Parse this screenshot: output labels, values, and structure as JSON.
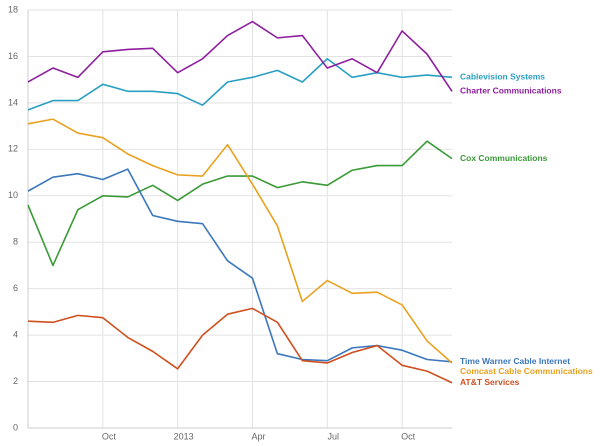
{
  "chart_data": {
    "type": "line",
    "categories": [
      null,
      null,
      null,
      "Oct",
      null,
      null,
      "2013",
      null,
      null,
      "Apr",
      null,
      null,
      "Jul",
      null,
      null,
      "Oct",
      null,
      null
    ],
    "ylim": [
      0,
      18
    ],
    "yticks": [
      0,
      2,
      4,
      6,
      8,
      10,
      12,
      14,
      16,
      18
    ],
    "grid": true,
    "series": [
      {
        "name": "Cablevision Systems",
        "color": "#2a9fc2",
        "values": [
          13.7,
          14.1,
          14.1,
          14.8,
          14.5,
          14.5,
          14.4,
          13.9,
          14.9,
          15.1,
          15.4,
          14.9,
          15.9,
          15.1,
          15.3,
          15.1,
          15.2,
          15.1
        ]
      },
      {
        "name": "Charter Communications",
        "color": "#8e1f9e",
        "values": [
          14.9,
          15.5,
          15.1,
          16.2,
          16.3,
          16.35,
          15.3,
          15.9,
          16.9,
          17.5,
          16.8,
          16.9,
          15.5,
          15.9,
          15.3,
          17.1,
          16.1,
          14.5
        ]
      },
      {
        "name": "Cox Communications",
        "color": "#3a9a36",
        "values": [
          9.6,
          7.0,
          9.4,
          10.0,
          9.95,
          10.45,
          9.8,
          10.5,
          10.85,
          10.85,
          10.35,
          10.6,
          10.45,
          11.1,
          11.3,
          11.3,
          12.35,
          11.6
        ]
      },
      {
        "name": "Time Warner Cable Internet",
        "color": "#3b77bd",
        "values": [
          10.2,
          10.8,
          10.95,
          10.7,
          11.15,
          9.15,
          8.9,
          8.8,
          7.2,
          6.45,
          3.2,
          2.95,
          2.9,
          3.45,
          3.55,
          3.35,
          2.95,
          2.85
        ]
      },
      {
        "name": "Comcast Cable Communications",
        "color": "#e9a11f",
        "values": [
          13.1,
          13.3,
          12.7,
          12.5,
          11.8,
          11.3,
          10.9,
          10.85,
          12.2,
          10.5,
          8.7,
          5.45,
          6.35,
          5.8,
          5.85,
          5.3,
          3.75,
          2.8
        ]
      },
      {
        "name": "AT&T Services",
        "color": "#cf4f1f",
        "values": [
          4.6,
          4.55,
          4.85,
          4.75,
          3.9,
          3.3,
          2.55,
          4.0,
          4.9,
          5.15,
          4.55,
          2.9,
          2.8,
          3.25,
          3.55,
          2.7,
          2.45,
          1.95
        ]
      }
    ]
  }
}
